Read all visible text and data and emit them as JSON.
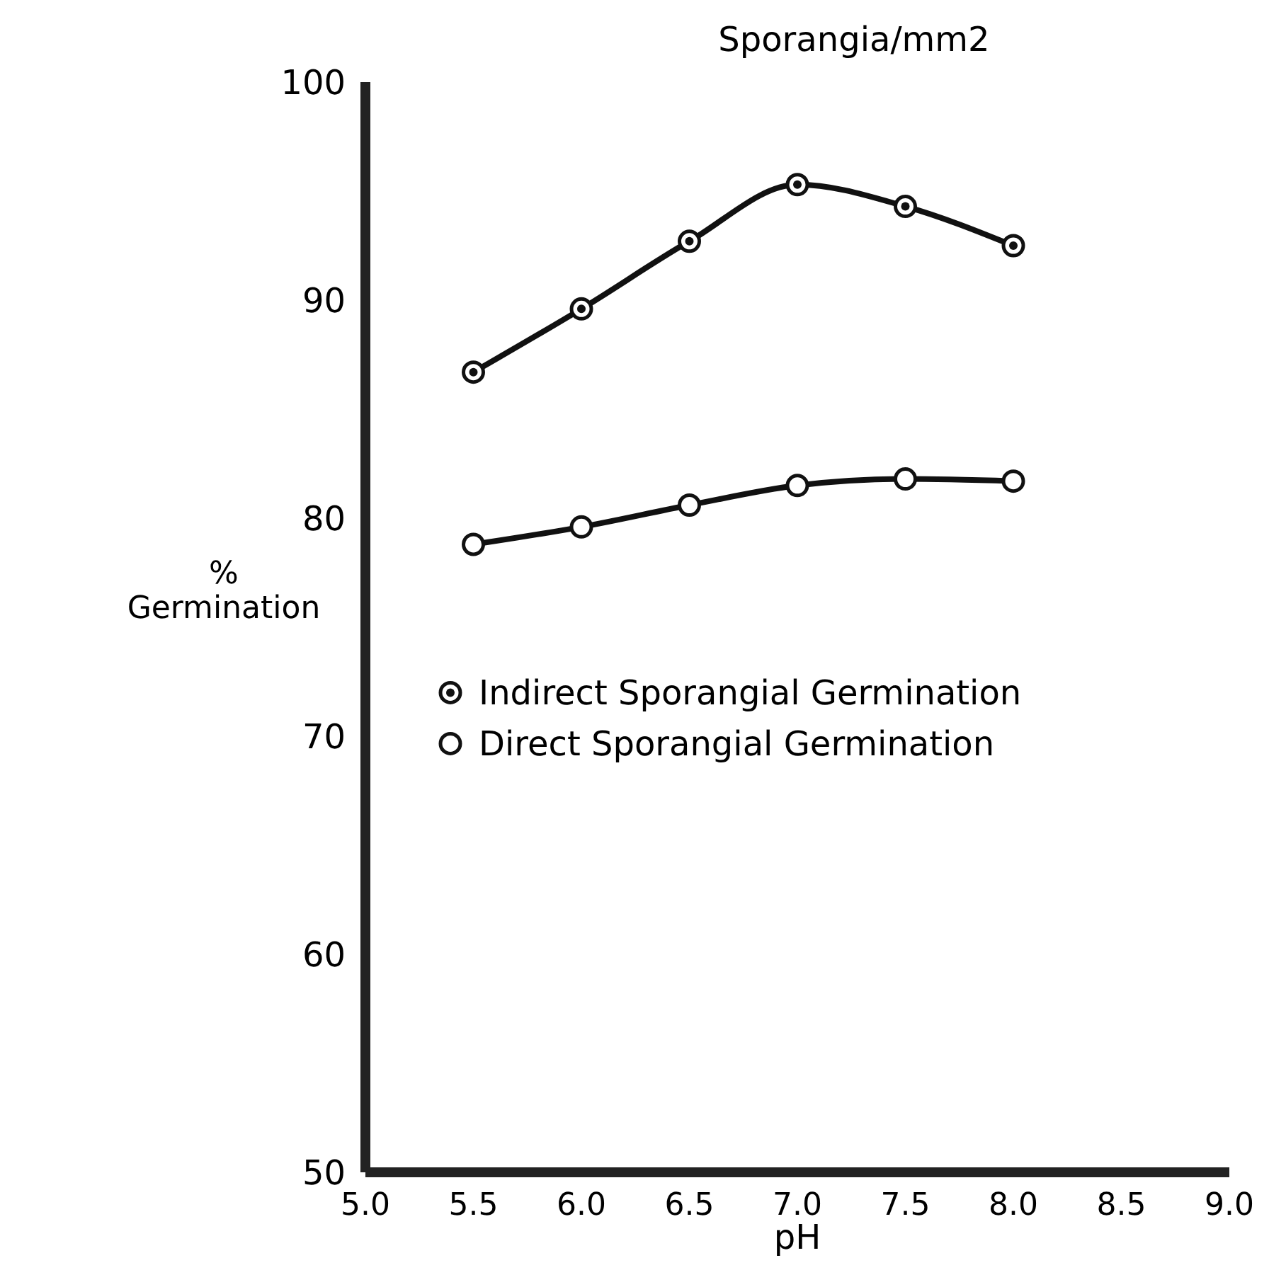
{
  "chart_data": {
    "type": "line",
    "title": "Sporangia/mm2",
    "xlabel": "pH",
    "ylabel": "% Germination",
    "x": [
      5.5,
      6.0,
      6.5,
      7.0,
      7.5,
      8.0
    ],
    "series": [
      {
        "name": "Indirect Sporangial Germination",
        "color": "#111111",
        "values": [
          86.7,
          89.6,
          92.7,
          95.3,
          94.3,
          92.5
        ]
      },
      {
        "name": "Direct Sporangial Germination",
        "color": "#111111",
        "values": [
          78.8,
          79.6,
          80.6,
          81.5,
          81.8,
          81.7
        ]
      }
    ],
    "xlim": [
      5.0,
      9.0
    ],
    "xticks": [
      {
        "value": 5,
        "label": "5.0"
      },
      5.5,
      {
        "value": 6,
        "label": "6.0"
      },
      6.5,
      {
        "value": 7,
        "label": "7.0"
      },
      7.5,
      {
        "value": 8,
        "label": "8.0"
      },
      8.5,
      {
        "value": 9,
        "label": "9.0"
      }
    ],
    "ylim": [
      50,
      100
    ],
    "yticks": [
      50,
      60,
      70,
      80,
      90,
      100
    ],
    "marker": "circle",
    "line_style": "solid",
    "legend": "left",
    "grid": false
  }
}
